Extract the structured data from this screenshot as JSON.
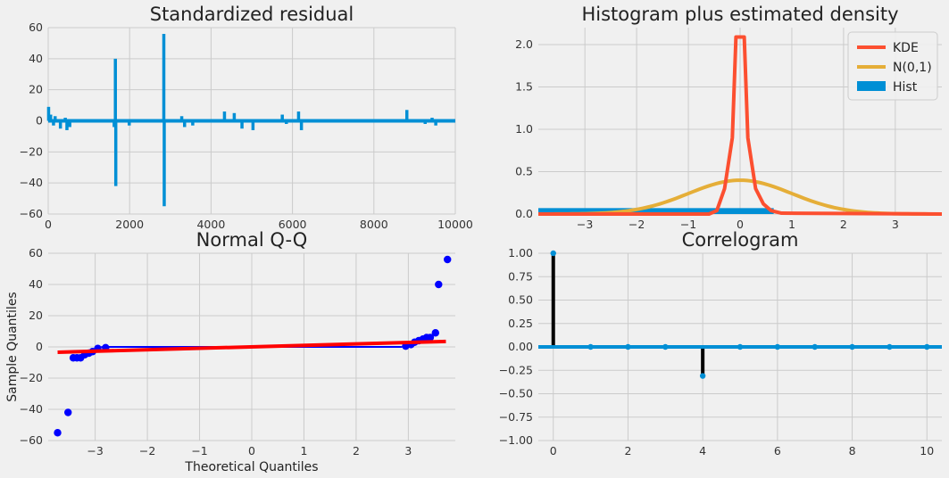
{
  "colors": {
    "background": "#f0f0f0",
    "grid": "#cbcbcb",
    "blue": "#008fd5",
    "red": "#fc4f30",
    "yellow": "#e5ae38",
    "qq_points": "#0000ff",
    "qq_line": "#ff0000",
    "stem": "#000000"
  },
  "chart_data": [
    {
      "id": "residual",
      "type": "line",
      "title": "Standardized residual",
      "xlabel": "",
      "ylabel": "",
      "xlim": [
        0,
        10000
      ],
      "ylim": [
        -60,
        60
      ],
      "xticks": [
        0,
        2000,
        4000,
        6000,
        8000,
        10000
      ],
      "yticks": [
        -60,
        -40,
        -20,
        0,
        20,
        40,
        60
      ],
      "grid": true,
      "spikes": [
        {
          "x": 10,
          "y": 9
        },
        {
          "x": 60,
          "y": 4
        },
        {
          "x": 130,
          "y": -3
        },
        {
          "x": 170,
          "y": 3
        },
        {
          "x": 300,
          "y": -5
        },
        {
          "x": 420,
          "y": 2
        },
        {
          "x": 460,
          "y": -6
        },
        {
          "x": 530,
          "y": -4
        },
        {
          "x": 1300,
          "y": 1
        },
        {
          "x": 1620,
          "y": -4
        },
        {
          "x": 1650,
          "y": 40
        },
        {
          "x": 1660,
          "y": -42
        },
        {
          "x": 1990,
          "y": -3
        },
        {
          "x": 2300,
          "y": -1
        },
        {
          "x": 2840,
          "y": 56
        },
        {
          "x": 2850,
          "y": -55
        },
        {
          "x": 3280,
          "y": 3
        },
        {
          "x": 3350,
          "y": -4
        },
        {
          "x": 3550,
          "y": -3
        },
        {
          "x": 4330,
          "y": 6
        },
        {
          "x": 4570,
          "y": 5
        },
        {
          "x": 4760,
          "y": -5
        },
        {
          "x": 5030,
          "y": -6
        },
        {
          "x": 5750,
          "y": 4
        },
        {
          "x": 5850,
          "y": -2
        },
        {
          "x": 6150,
          "y": 6
        },
        {
          "x": 6220,
          "y": -6
        },
        {
          "x": 8810,
          "y": 7
        },
        {
          "x": 9260,
          "y": -2
        },
        {
          "x": 9430,
          "y": 2
        },
        {
          "x": 9520,
          "y": -3
        },
        {
          "x": 9720,
          "y": 1
        }
      ]
    },
    {
      "id": "histogram",
      "type": "line",
      "title": "Histogram plus estimated density",
      "xlim": [
        -3.9,
        3.9
      ],
      "ylim": [
        0,
        2.2
      ],
      "xticks": [
        -3,
        -2,
        -1,
        0,
        1,
        2,
        3
      ],
      "yticks": [
        0.0,
        0.5,
        1.0,
        1.5,
        2.0
      ],
      "grid": true,
      "legend": {
        "placement": "top-right",
        "entries": [
          "KDE",
          "N(0,1)",
          "Hist"
        ]
      },
      "hist": {
        "name": "Hist",
        "x_range": [
          -3.9,
          0.65
        ],
        "height": 0.07
      },
      "kde": {
        "name": "KDE",
        "x": [
          -3.9,
          -0.6,
          -0.45,
          -0.3,
          -0.15,
          -0.08,
          0,
          0.08,
          0.15,
          0.3,
          0.45,
          0.6,
          0.8,
          3.9
        ],
        "y": [
          0,
          0,
          0.04,
          0.3,
          0.9,
          2.09,
          2.09,
          2.09,
          0.9,
          0.3,
          0.12,
          0.04,
          0.01,
          0
        ]
      },
      "normal": {
        "name": "N(0,1)",
        "mean": 0,
        "std": 1
      }
    },
    {
      "id": "qq",
      "type": "scatter",
      "title": "Normal Q-Q",
      "xlabel": "Theoretical Quantiles",
      "ylabel": "Sample Quantiles",
      "xlim": [
        -3.9,
        3.9
      ],
      "ylim": [
        -60,
        60
      ],
      "xticks": [
        -3,
        -2,
        -1,
        0,
        1,
        2,
        3
      ],
      "yticks": [
        -60,
        -40,
        -20,
        0,
        20,
        40,
        60
      ],
      "grid": true,
      "points": [
        {
          "x": -3.72,
          "y": -55
        },
        {
          "x": -3.52,
          "y": -42
        },
        {
          "x": -3.42,
          "y": -7
        },
        {
          "x": -3.35,
          "y": -7
        },
        {
          "x": -3.28,
          "y": -7
        },
        {
          "x": -3.2,
          "y": -5
        },
        {
          "x": -3.12,
          "y": -4
        },
        {
          "x": -3.05,
          "y": -3
        },
        {
          "x": -2.95,
          "y": -1
        },
        {
          "x": -2.8,
          "y": -0.5
        },
        {
          "x": 2.95,
          "y": 0.5
        },
        {
          "x": 3.05,
          "y": 1.5
        },
        {
          "x": 3.12,
          "y": 3
        },
        {
          "x": 3.2,
          "y": 4
        },
        {
          "x": 3.28,
          "y": 5
        },
        {
          "x": 3.35,
          "y": 6
        },
        {
          "x": 3.42,
          "y": 6
        },
        {
          "x": 3.52,
          "y": 9
        },
        {
          "x": 3.58,
          "y": 40
        },
        {
          "x": 3.75,
          "y": 56
        }
      ],
      "band": {
        "x_range": [
          -2.9,
          2.9
        ],
        "y_range": [
          -0.6,
          0.6
        ]
      },
      "fit_line": {
        "x": [
          -3.72,
          3.72
        ],
        "y": [
          -3.4,
          3.5
        ]
      }
    },
    {
      "id": "correlogram",
      "type": "bar",
      "title": "Correlogram",
      "xlim": [
        -0.4,
        10.4
      ],
      "ylim": [
        -1.0,
        1.0
      ],
      "xticks": [
        0,
        2,
        4,
        6,
        8,
        10
      ],
      "yticks": [
        -1.0,
        -0.75,
        -0.5,
        -0.25,
        0.0,
        0.25,
        0.5,
        0.75,
        1.0
      ],
      "grid": true,
      "lags": [
        0,
        1,
        2,
        3,
        4,
        5,
        6,
        7,
        8,
        9,
        10
      ],
      "values": [
        1.0,
        0.0,
        0.0,
        0.0,
        -0.31,
        0.0,
        0.0,
        0.0,
        0.0,
        0.0,
        0.0
      ]
    }
  ]
}
